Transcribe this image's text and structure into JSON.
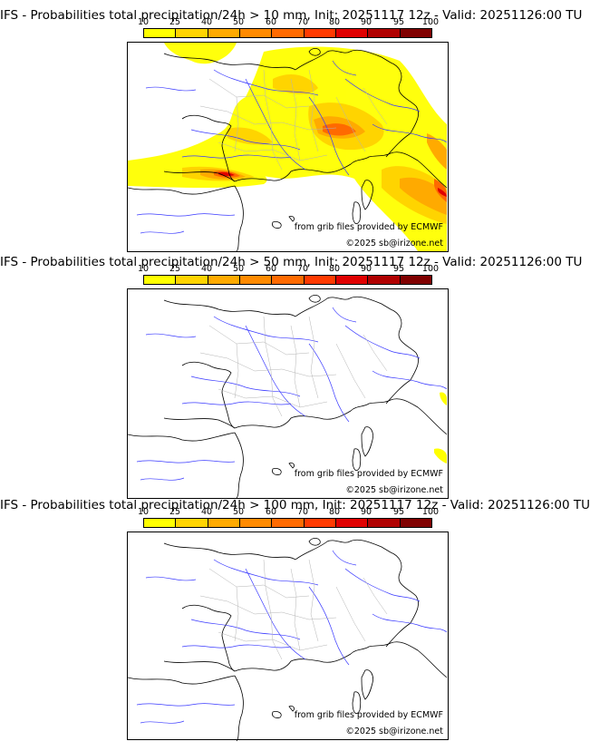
{
  "colorscale": {
    "labels": [
      "10",
      "25",
      "40",
      "50",
      "60",
      "70",
      "80",
      "90",
      "95",
      "100"
    ],
    "colors": [
      "#ffff00",
      "#ffd400",
      "#ffaa00",
      "#ff8a00",
      "#ff6a00",
      "#ff3a00",
      "#e00000",
      "#b00000",
      "#800000",
      "#500000"
    ]
  },
  "credits": {
    "source": "from grib files provided by ECMWF",
    "copyright": "©2025 sb@irizone.net"
  },
  "panels": [
    {
      "title": "IFS - Probabilities total precipitation/24h > 10 mm, Init: 20251117 12z - Valid: 20251126:00 TU",
      "threshold_mm": 10
    },
    {
      "title": "IFS - Probabilities total precipitation/24h > 50 mm, Init: 20251117 12z - Valid: 20251126:00 TU",
      "threshold_mm": 50
    },
    {
      "title": "IFS - Probabilities total precipitation/24h > 100 mm, Init: 20251117 12z - Valid: 20251126:00 TU",
      "threshold_mm": 100
    }
  ]
}
